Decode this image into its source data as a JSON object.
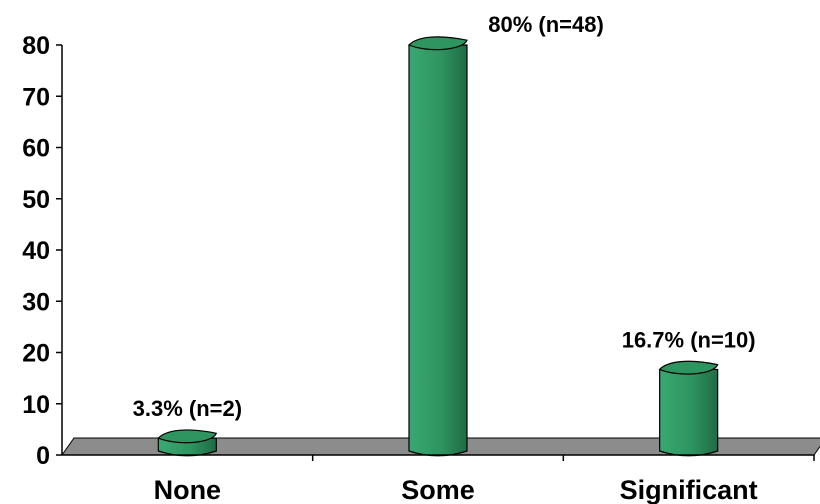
{
  "chart_data": {
    "type": "bar",
    "categories": [
      "None",
      "Some",
      "Significant"
    ],
    "values": [
      3.3,
      80,
      16.7
    ],
    "data_labels": [
      "3.3% (n=2)",
      "80% (n=48)",
      "16.7% (n=10)"
    ],
    "ylim": [
      0,
      80
    ],
    "yticks": [
      "0",
      "10",
      "20",
      "30",
      "40",
      "50",
      "60",
      "70",
      "80"
    ],
    "grid": false,
    "legend": "none",
    "bar_color": "#2e9460",
    "bar_dark": "#1f6b44",
    "floor_color": "#8c8c8c"
  }
}
